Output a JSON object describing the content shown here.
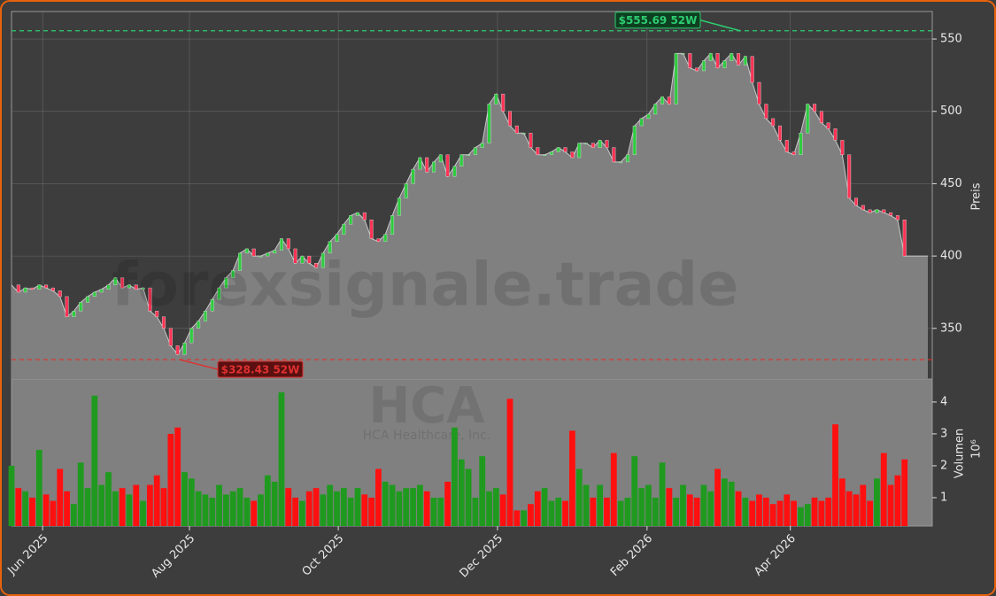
{
  "chart_data": [
    {
      "type": "area",
      "watermark": "forexsignale.trade",
      "ylabel": "Preis",
      "color": "#808080",
      "line_color": "#c8c8c8",
      "up_color": "#2ecc40",
      "down_color": "#ff3355",
      "grid": true,
      "xlim": [
        0,
        133
      ],
      "ylim": [
        315,
        569
      ],
      "yticks": [
        350,
        400,
        450,
        500,
        550
      ],
      "values": [
        380,
        375,
        378,
        377,
        380,
        378,
        376,
        372,
        358,
        362,
        368,
        372,
        375,
        377,
        380,
        385,
        378,
        380,
        377,
        378,
        362,
        358,
        350,
        338,
        332,
        340,
        350,
        355,
        362,
        370,
        378,
        385,
        390,
        402,
        405,
        400,
        400,
        402,
        404,
        412,
        405,
        395,
        400,
        395,
        392,
        402,
        410,
        415,
        422,
        428,
        430,
        425,
        412,
        410,
        415,
        428,
        440,
        450,
        460,
        468,
        458,
        465,
        470,
        455,
        462,
        470,
        470,
        475,
        478,
        505,
        512,
        500,
        490,
        485,
        485,
        475,
        470,
        470,
        472,
        475,
        472,
        468,
        478,
        478,
        475,
        480,
        475,
        465,
        465,
        470,
        490,
        495,
        498,
        505,
        510,
        505,
        540,
        540,
        530,
        528,
        535,
        540,
        530,
        535,
        540,
        532,
        538,
        520,
        505,
        495,
        490,
        480,
        472,
        470,
        485,
        505,
        500,
        492,
        488,
        480,
        470,
        440,
        435,
        432,
        430,
        432,
        430,
        428,
        425,
        400
      ],
      "annotations": [
        {
          "text": "$555.69 52W",
          "value": 555.69,
          "color": "#2ecc71"
        },
        {
          "text": "$328.43 52W",
          "value": 328.43,
          "color": "#e03030"
        }
      ]
    },
    {
      "type": "bar",
      "watermark": "HCA",
      "subwatermark": "HCA Healthcare, Inc.",
      "ylabel": "Volumen",
      "scale_label": "10⁶",
      "up_color": "#1f9a1f",
      "down_color": "#ff1010",
      "background": "#808080",
      "xlim": [
        0,
        133
      ],
      "ylim": [
        0.11,
        4.72
      ],
      "yticks": [
        1,
        2,
        3,
        4
      ],
      "xticks": [
        {
          "value": 4.5,
          "label": "Jun 2025"
        },
        {
          "value": 25.7,
          "label": "Aug 2025"
        },
        {
          "value": 47.2,
          "label": "Oct 2025"
        },
        {
          "value": 70.2,
          "label": "Dec 2025"
        },
        {
          "value": 91.8,
          "label": "Feb 2026"
        },
        {
          "value": 112.5,
          "label": "Apr 2026"
        }
      ],
      "values": [
        2.0,
        1.3,
        1.2,
        1.0,
        2.5,
        1.1,
        0.9,
        1.9,
        1.2,
        0.8,
        2.1,
        1.3,
        4.2,
        1.4,
        1.8,
        1.2,
        1.3,
        1.1,
        1.4,
        0.9,
        1.4,
        1.7,
        1.3,
        3.0,
        3.2,
        1.8,
        1.6,
        1.2,
        1.1,
        1.0,
        1.4,
        1.1,
        1.2,
        1.3,
        1.0,
        0.9,
        1.1,
        1.7,
        1.5,
        4.3,
        1.3,
        1.0,
        0.9,
        1.2,
        1.3,
        1.1,
        1.4,
        1.2,
        1.3,
        1.0,
        1.3,
        1.1,
        1.0,
        1.9,
        1.5,
        1.4,
        1.2,
        1.3,
        1.3,
        1.4,
        1.2,
        1.0,
        1.0,
        1.5,
        3.2,
        2.2,
        1.9,
        1.0,
        2.3,
        1.2,
        1.3,
        1.1,
        4.1,
        0.6,
        0.6,
        0.8,
        1.2,
        1.3,
        0.9,
        1.0,
        0.9,
        3.1,
        1.9,
        1.4,
        1.0,
        1.4,
        1.0,
        2.4,
        0.9,
        1.0,
        2.3,
        1.3,
        1.4,
        1.0,
        2.1,
        1.3,
        1.0,
        1.4,
        1.1,
        1.0,
        1.4,
        1.2,
        1.9,
        1.6,
        1.5,
        1.2,
        1.0,
        0.9,
        1.1,
        1.0,
        0.8,
        0.9,
        1.1,
        0.9,
        0.7,
        0.8,
        1.0,
        0.9,
        1.0,
        3.3,
        1.6,
        1.2,
        1.1,
        1.4,
        0.9,
        1.6,
        2.4,
        1.4,
        1.7,
        2.2
      ]
    }
  ]
}
